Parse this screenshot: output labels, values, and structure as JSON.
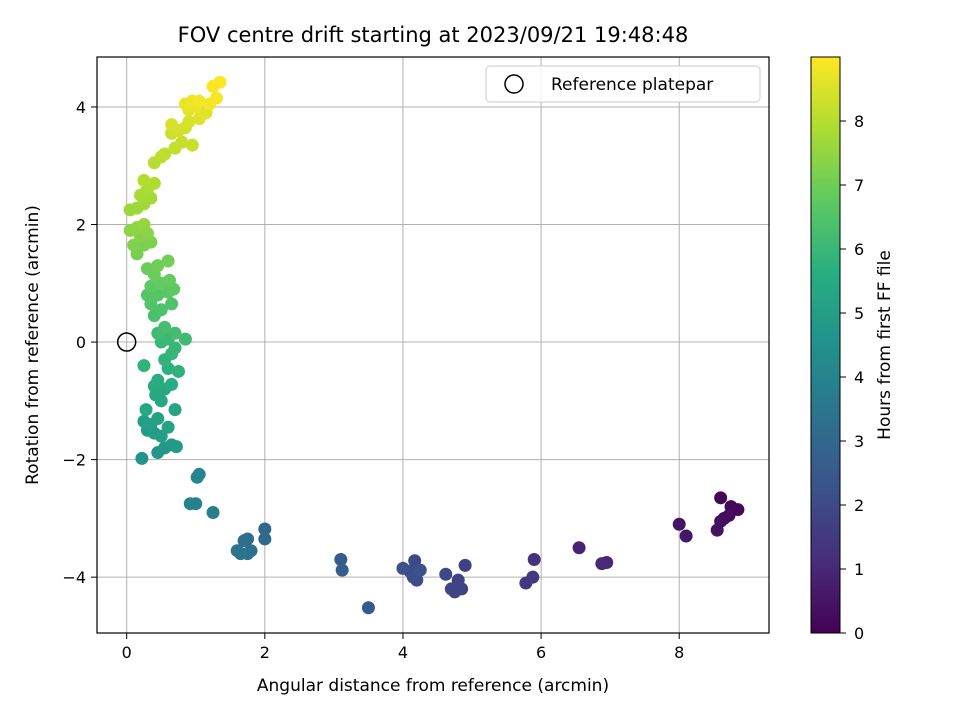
{
  "chart_data": {
    "type": "scatter",
    "title": "FOV centre drift starting at 2023/09/21 19:48:48",
    "xlabel": "Angular distance from reference (arcmin)",
    "ylabel": "Rotation from reference (arcmin)",
    "colorbar_label": "Hours from first FF file",
    "xlim": [
      -0.43,
      9.3
    ],
    "ylim": [
      -4.95,
      4.85
    ],
    "xticks": [
      0,
      2,
      4,
      6,
      8
    ],
    "yticks": [
      -4,
      -2,
      0,
      2,
      4
    ],
    "colorbar_range": [
      0,
      9.0
    ],
    "colorbar_ticks": [
      0,
      1,
      2,
      3,
      4,
      5,
      6,
      7,
      8
    ],
    "colormap": "viridis",
    "grid": true,
    "legend": {
      "placement": "top-right",
      "entries": [
        "Reference platepar"
      ]
    },
    "reference_point": {
      "x": 0,
      "y": 0
    },
    "points": [
      {
        "x": 8.6,
        "y": -2.65,
        "t": 0.1
      },
      {
        "x": 8.75,
        "y": -2.8,
        "t": 0.15
      },
      {
        "x": 8.85,
        "y": -2.85,
        "t": 0.2
      },
      {
        "x": 8.65,
        "y": -3.0,
        "t": 0.25
      },
      {
        "x": 8.72,
        "y": -2.95,
        "t": 0.3
      },
      {
        "x": 8.6,
        "y": -3.05,
        "t": 0.35
      },
      {
        "x": 8.55,
        "y": -3.2,
        "t": 0.4
      },
      {
        "x": 8.0,
        "y": -3.1,
        "t": 0.5
      },
      {
        "x": 8.1,
        "y": -3.3,
        "t": 0.55
      },
      {
        "x": 6.55,
        "y": -3.5,
        "t": 0.9
      },
      {
        "x": 6.95,
        "y": -3.75,
        "t": 1.0
      },
      {
        "x": 6.88,
        "y": -3.77,
        "t": 1.05
      },
      {
        "x": 5.9,
        "y": -3.7,
        "t": 1.3
      },
      {
        "x": 5.88,
        "y": -4.0,
        "t": 1.4
      },
      {
        "x": 5.78,
        "y": -4.1,
        "t": 1.45
      },
      {
        "x": 4.9,
        "y": -3.8,
        "t": 1.7
      },
      {
        "x": 4.8,
        "y": -4.05,
        "t": 1.75
      },
      {
        "x": 4.85,
        "y": -4.2,
        "t": 1.8
      },
      {
        "x": 4.75,
        "y": -4.25,
        "t": 1.85
      },
      {
        "x": 4.7,
        "y": -4.2,
        "t": 1.9
      },
      {
        "x": 4.62,
        "y": -3.95,
        "t": 1.95
      },
      {
        "x": 4.17,
        "y": -3.72,
        "t": 2.0
      },
      {
        "x": 4.1,
        "y": -3.9,
        "t": 2.05
      },
      {
        "x": 4.2,
        "y": -4.05,
        "t": 2.1
      },
      {
        "x": 4.15,
        "y": -4.0,
        "t": 2.15
      },
      {
        "x": 4.0,
        "y": -3.85,
        "t": 2.2
      },
      {
        "x": 4.25,
        "y": -3.88,
        "t": 2.25
      },
      {
        "x": 3.1,
        "y": -3.7,
        "t": 2.55
      },
      {
        "x": 3.12,
        "y": -3.88,
        "t": 2.6
      },
      {
        "x": 3.5,
        "y": -4.52,
        "t": 2.5
      },
      {
        "x": 2.0,
        "y": -3.18,
        "t": 3.0
      },
      {
        "x": 2.0,
        "y": -3.35,
        "t": 3.05
      },
      {
        "x": 1.75,
        "y": -3.35,
        "t": 3.2
      },
      {
        "x": 1.7,
        "y": -3.38,
        "t": 3.25
      },
      {
        "x": 1.8,
        "y": -3.55,
        "t": 3.3
      },
      {
        "x": 1.75,
        "y": -3.6,
        "t": 3.35
      },
      {
        "x": 1.6,
        "y": -3.55,
        "t": 3.4
      },
      {
        "x": 1.65,
        "y": -3.6,
        "t": 3.45
      },
      {
        "x": 1.25,
        "y": -2.9,
        "t": 3.8
      },
      {
        "x": 1.0,
        "y": -2.75,
        "t": 3.9
      },
      {
        "x": 0.92,
        "y": -2.75,
        "t": 4.0
      },
      {
        "x": 1.05,
        "y": -2.25,
        "t": 4.05
      },
      {
        "x": 1.02,
        "y": -2.3,
        "t": 4.1
      },
      {
        "x": 0.22,
        "y": -1.98,
        "t": 4.6
      },
      {
        "x": 0.45,
        "y": -1.88,
        "t": 4.7
      },
      {
        "x": 0.55,
        "y": -1.8,
        "t": 4.75
      },
      {
        "x": 0.65,
        "y": -1.75,
        "t": 4.8
      },
      {
        "x": 0.72,
        "y": -1.78,
        "t": 4.85
      },
      {
        "x": 0.3,
        "y": -1.5,
        "t": 4.9
      },
      {
        "x": 0.4,
        "y": -1.55,
        "t": 4.95
      },
      {
        "x": 0.5,
        "y": -1.6,
        "t": 5.0
      },
      {
        "x": 0.25,
        "y": -1.35,
        "t": 5.05
      },
      {
        "x": 0.35,
        "y": -1.4,
        "t": 5.1
      },
      {
        "x": 0.45,
        "y": -1.3,
        "t": 5.15
      },
      {
        "x": 0.6,
        "y": -1.45,
        "t": 5.2
      },
      {
        "x": 0.7,
        "y": -1.15,
        "t": 5.25
      },
      {
        "x": 0.28,
        "y": -1.15,
        "t": 5.3
      },
      {
        "x": 0.5,
        "y": -1.0,
        "t": 5.35
      },
      {
        "x": 0.42,
        "y": -0.9,
        "t": 5.4
      },
      {
        "x": 0.55,
        "y": -0.8,
        "t": 5.45
      },
      {
        "x": 0.4,
        "y": -0.75,
        "t": 5.5
      },
      {
        "x": 0.65,
        "y": -0.72,
        "t": 5.55
      },
      {
        "x": 0.45,
        "y": -0.65,
        "t": 5.6
      },
      {
        "x": 0.6,
        "y": -0.45,
        "t": 5.7
      },
      {
        "x": 0.75,
        "y": -0.5,
        "t": 5.75
      },
      {
        "x": 0.25,
        "y": -0.4,
        "t": 5.8
      },
      {
        "x": 0.55,
        "y": -0.3,
        "t": 5.85
      },
      {
        "x": 0.65,
        "y": -0.2,
        "t": 5.9
      },
      {
        "x": 0.7,
        "y": -0.1,
        "t": 5.95
      },
      {
        "x": 0.5,
        "y": 0.0,
        "t": 6.0
      },
      {
        "x": 0.6,
        "y": 0.05,
        "t": 6.05
      },
      {
        "x": 0.85,
        "y": 0.05,
        "t": 6.1
      },
      {
        "x": 0.45,
        "y": 0.15,
        "t": 6.15
      },
      {
        "x": 0.7,
        "y": 0.15,
        "t": 6.2
      },
      {
        "x": 0.55,
        "y": 0.25,
        "t": 6.25
      },
      {
        "x": 0.4,
        "y": 0.45,
        "t": 6.35
      },
      {
        "x": 0.5,
        "y": 0.55,
        "t": 6.4
      },
      {
        "x": 0.65,
        "y": 0.65,
        "t": 6.45
      },
      {
        "x": 0.35,
        "y": 0.65,
        "t": 6.5
      },
      {
        "x": 0.3,
        "y": 0.8,
        "t": 6.55
      },
      {
        "x": 0.45,
        "y": 0.8,
        "t": 6.6
      },
      {
        "x": 0.6,
        "y": 0.85,
        "t": 6.65
      },
      {
        "x": 0.68,
        "y": 0.9,
        "t": 6.7
      },
      {
        "x": 0.35,
        "y": 0.95,
        "t": 6.75
      },
      {
        "x": 0.5,
        "y": 1.0,
        "t": 6.8
      },
      {
        "x": 0.62,
        "y": 1.05,
        "t": 6.85
      },
      {
        "x": 0.4,
        "y": 1.15,
        "t": 6.9
      },
      {
        "x": 0.3,
        "y": 1.25,
        "t": 6.95
      },
      {
        "x": 0.45,
        "y": 1.3,
        "t": 7.0
      },
      {
        "x": 0.6,
        "y": 1.38,
        "t": 7.05
      },
      {
        "x": 0.15,
        "y": 1.5,
        "t": 7.1
      },
      {
        "x": 0.25,
        "y": 1.65,
        "t": 7.15
      },
      {
        "x": 0.35,
        "y": 1.7,
        "t": 7.2
      },
      {
        "x": 0.1,
        "y": 1.65,
        "t": 7.25
      },
      {
        "x": 0.2,
        "y": 1.8,
        "t": 7.3
      },
      {
        "x": 0.3,
        "y": 1.85,
        "t": 7.35
      },
      {
        "x": 0.05,
        "y": 1.9,
        "t": 7.4
      },
      {
        "x": 0.15,
        "y": 1.95,
        "t": 7.45
      },
      {
        "x": 0.25,
        "y": 2.0,
        "t": 7.5
      },
      {
        "x": 0.05,
        "y": 2.25,
        "t": 7.6
      },
      {
        "x": 0.15,
        "y": 2.28,
        "t": 7.65
      },
      {
        "x": 0.25,
        "y": 2.35,
        "t": 7.7
      },
      {
        "x": 0.35,
        "y": 2.45,
        "t": 7.75
      },
      {
        "x": 0.2,
        "y": 2.5,
        "t": 7.8
      },
      {
        "x": 0.3,
        "y": 2.6,
        "t": 7.85
      },
      {
        "x": 0.4,
        "y": 2.7,
        "t": 7.9
      },
      {
        "x": 0.25,
        "y": 2.75,
        "t": 7.95
      },
      {
        "x": 0.4,
        "y": 3.05,
        "t": 8.0
      },
      {
        "x": 0.5,
        "y": 3.15,
        "t": 8.05
      },
      {
        "x": 0.55,
        "y": 3.2,
        "t": 8.1
      },
      {
        "x": 0.7,
        "y": 3.3,
        "t": 8.15
      },
      {
        "x": 0.8,
        "y": 3.4,
        "t": 8.2
      },
      {
        "x": 0.95,
        "y": 3.35,
        "t": 8.25
      },
      {
        "x": 0.65,
        "y": 3.55,
        "t": 8.3
      },
      {
        "x": 0.75,
        "y": 3.6,
        "t": 8.35
      },
      {
        "x": 0.85,
        "y": 3.65,
        "t": 8.4
      },
      {
        "x": 0.65,
        "y": 3.7,
        "t": 8.45
      },
      {
        "x": 0.9,
        "y": 3.75,
        "t": 8.5
      },
      {
        "x": 1.05,
        "y": 3.8,
        "t": 8.55
      },
      {
        "x": 1.15,
        "y": 3.9,
        "t": 8.6
      },
      {
        "x": 0.9,
        "y": 3.95,
        "t": 8.65
      },
      {
        "x": 1.0,
        "y": 4.0,
        "t": 8.7
      },
      {
        "x": 0.85,
        "y": 4.05,
        "t": 8.75
      },
      {
        "x": 0.95,
        "y": 4.1,
        "t": 8.8
      },
      {
        "x": 1.05,
        "y": 4.1,
        "t": 8.85
      },
      {
        "x": 1.2,
        "y": 4.05,
        "t": 8.88
      },
      {
        "x": 1.3,
        "y": 4.15,
        "t": 8.92
      },
      {
        "x": 1.25,
        "y": 4.35,
        "t": 8.95
      },
      {
        "x": 1.35,
        "y": 4.42,
        "t": 9.0
      }
    ]
  }
}
